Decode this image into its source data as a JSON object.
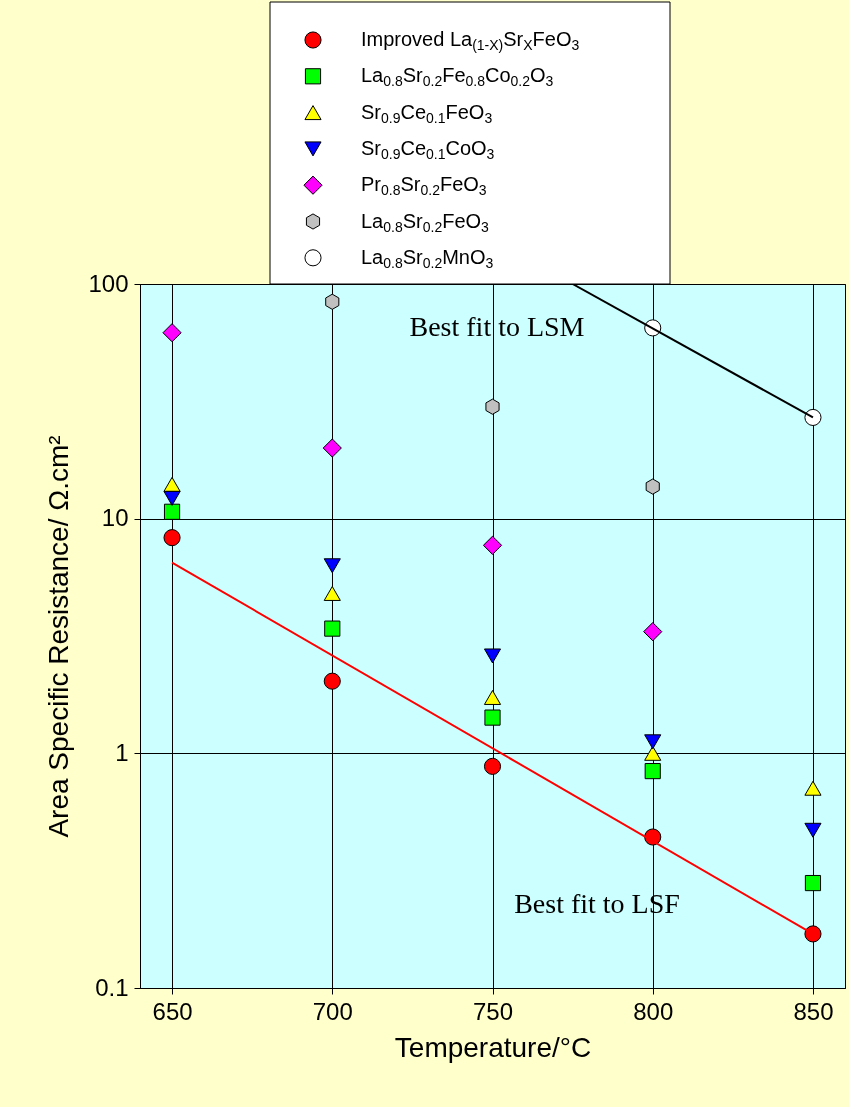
{
  "chart_data": {
    "type": "scatter",
    "xlabel": "Temperature/°C",
    "ylabel": "Area Specific Resistance/ Ω.cm²",
    "x": [
      650,
      700,
      750,
      800,
      850
    ],
    "xlim": [
      640,
      860
    ],
    "xticks": [
      650,
      700,
      750,
      800,
      850
    ],
    "ylim": [
      0.1,
      100
    ],
    "yticks": [
      0.1,
      1,
      10,
      100
    ],
    "log": "y",
    "grid": true,
    "legend": "top",
    "annotations": [
      "Best fit to LSM",
      "Best fit to LSF"
    ],
    "series": [
      {
        "name": "Improved La$_{(1-X)}$Sr$_{X}$FeO$_{3}$",
        "color": "#ff0000",
        "marker": "circle",
        "values": [
          8.3,
          2.03,
          0.88,
          0.44,
          0.17
        ]
      },
      {
        "name": "La$_{0.8}$Sr$_{0.2}$Fe$_{0.8}$Co$_{0.2}$O$_{3}$",
        "color": "#00ff00",
        "marker": "square",
        "values": [
          10.7,
          3.4,
          1.42,
          0.84,
          0.28
        ]
      },
      {
        "name": "Sr$_{0.9}$Ce$_{0.1}$FeO$_{3}$",
        "color": "#ffff00",
        "marker": "triangle",
        "values": [
          14,
          4.8,
          1.73,
          1.0,
          0.71
        ]
      },
      {
        "name": "Sr$_{0.9}$Ce$_{0.1}$CoO$_{3}$",
        "color": "#0000ff",
        "marker": "triangle-down",
        "values": [
          12.2,
          6.3,
          2.6,
          1.12,
          0.47
        ]
      },
      {
        "name": "Pr$_{0.8}$Sr$_{0.2}$FeO$_{3}$",
        "color": "#ff00ff",
        "marker": "diamond",
        "values": [
          62,
          20,
          7.7,
          3.3,
          null
        ]
      },
      {
        "name": "La$_{0.8}$Sr$_{0.2}$FeO$_{3}$",
        "color": "#c0c0c0",
        "values": [
          null,
          84,
          30,
          13.7,
          null
        ]
      },
      {
        "name": "La$_{0.8}$Sr$_{0.2}$MnO$_{3}$",
        "color": "#ffffff",
        "marker": "circle",
        "values": [
          null,
          null,
          null,
          65,
          27
        ]
      },
      {
        "type": "line",
        "color": "#ff0000",
        "marker": "none",
        "x": [
          650,
          850
        ],
        "values": [
          6.5,
          0.17
        ]
      },
      {
        "type": "line",
        "color": "#000000",
        "marker": "none",
        "x": [
          775,
          850
        ],
        "values": [
          100,
          27
        ]
      }
    ]
  }
}
